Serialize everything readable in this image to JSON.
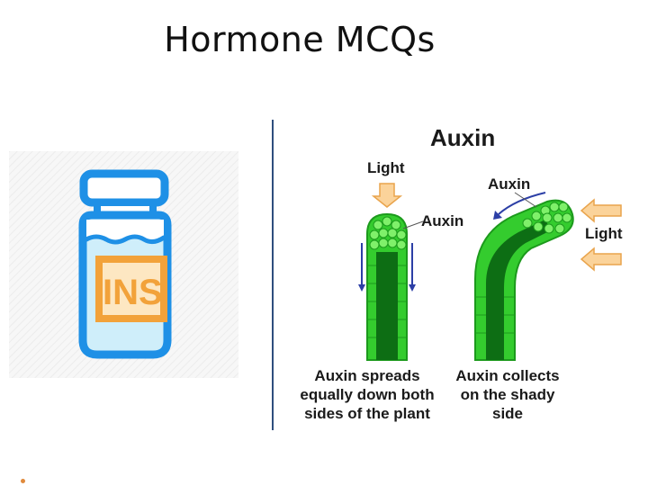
{
  "slide": {
    "title": "Hormone MCQs"
  },
  "vial": {
    "label": "INS",
    "colors": {
      "outline": "#1e90e6",
      "fill": "#cfeefa",
      "label": "#f2a23a"
    }
  },
  "auxin_figure": {
    "title": "Auxin",
    "light_label_left": "Light",
    "auxin_label_left": "Auxin",
    "auxin_label_right": "Auxin",
    "light_label_right": "Light",
    "caption_left": "Auxin spreads equally down both sides of the plant",
    "caption_right": "Auxin collects on the shady side",
    "colors": {
      "stem": "#34cc2e",
      "stem_dark": "#0d6e14",
      "arrow": "#fbd39a",
      "arrow_stroke": "#e9a44c",
      "flow_arrow": "#2c3fa6"
    }
  }
}
